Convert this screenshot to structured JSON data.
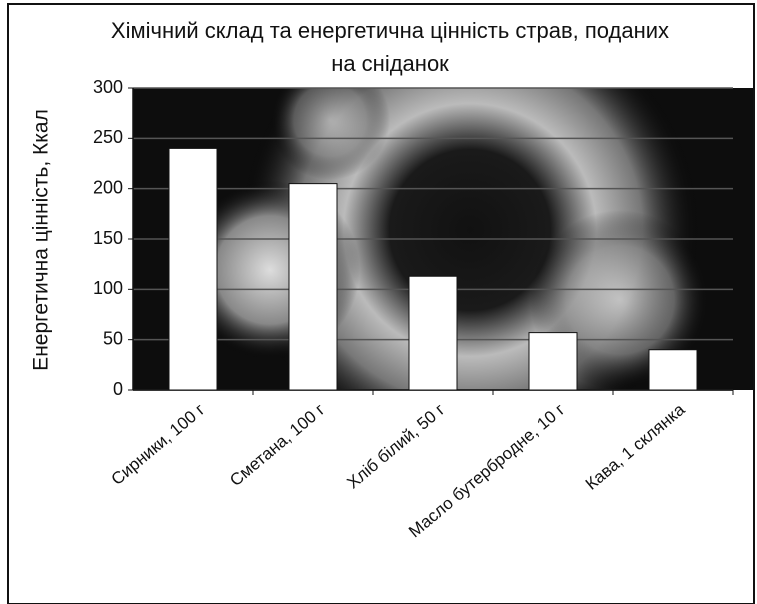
{
  "chart_data": {
    "type": "bar",
    "title": "Хімічний склад та енергетична цінність страв, поданих на сніданок",
    "y_label": "Енергетична цінність, Ккал",
    "categories": [
      "Сирники, 100 г",
      "Сметана, 100 г",
      "Хліб білий, 50 г",
      "Масло бутербродне, 10 г",
      "Кава, 1 склянка"
    ],
    "values": [
      240,
      205,
      113,
      57,
      40
    ],
    "color": "#ffffff",
    "ylim": [
      0,
      300
    ],
    "yticks": [
      0,
      50,
      100,
      150,
      200,
      250,
      300
    ],
    "grid": true
  }
}
